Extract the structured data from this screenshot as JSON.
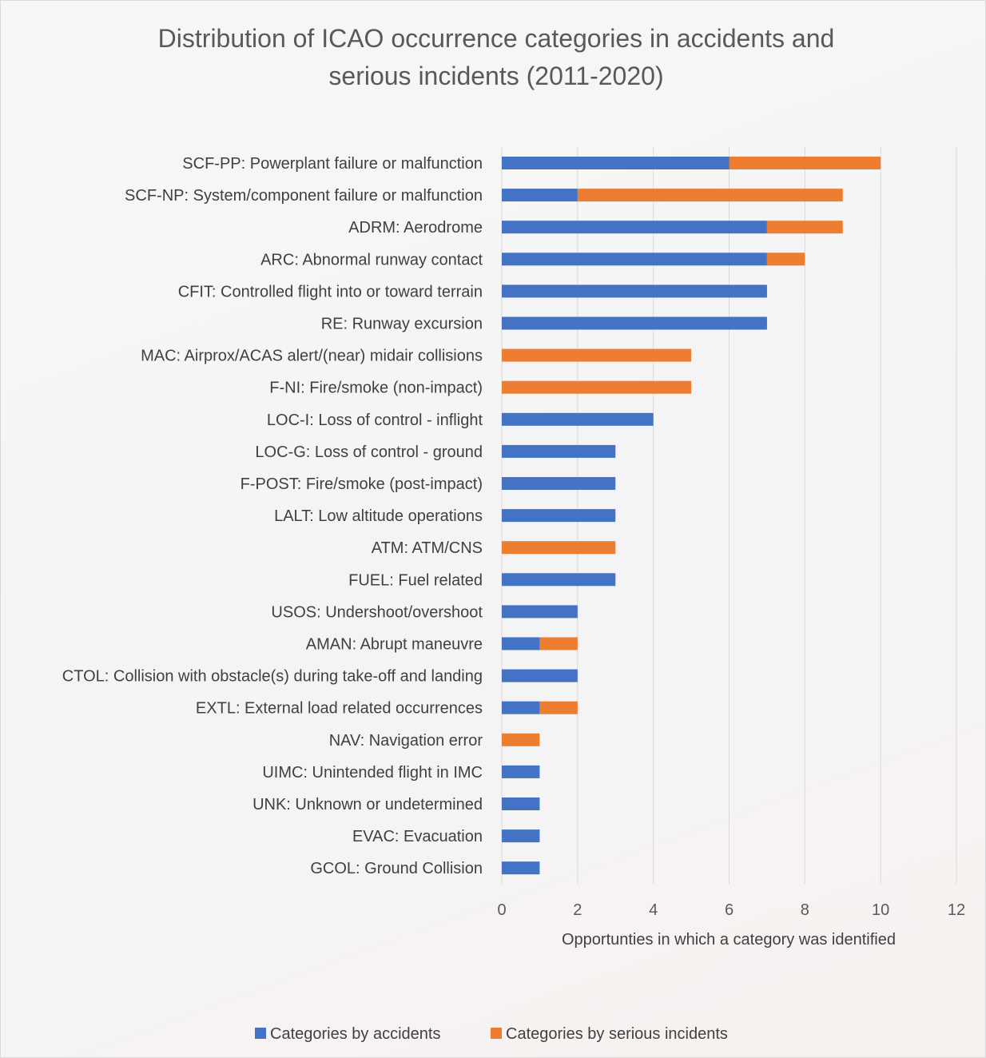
{
  "chart_data": {
    "type": "bar",
    "orientation": "horizontal",
    "stacked": true,
    "title": "Distribution of ICAO occurrence categories in accidents and serious incidents (2011-2020)",
    "title_lines": [
      "Distribution of ICAO occurrence categories in accidents and",
      "serious incidents (2011-2020)"
    ],
    "xlabel": "Opportunties in which a category was identified",
    "ylabel": "",
    "xlim": [
      0,
      12
    ],
    "x_ticks": [
      "0",
      "2",
      "4",
      "6",
      "8",
      "10",
      "12"
    ],
    "grid": "vertical",
    "legend_position": "bottom",
    "categories": [
      "SCF-PP: Powerplant failure or malfunction",
      "SCF-NP: System/component failure or malfunction",
      "ADRM: Aerodrome",
      "ARC: Abnormal runway contact",
      "CFIT: Controlled flight into or toward terrain",
      "RE: Runway excursion",
      "MAC: Airprox/ACAS alert/(near) midair collisions",
      "F-NI: Fire/smoke (non-impact)",
      "LOC-I: Loss of control - inflight",
      "LOC-G: Loss of control - ground",
      "F-POST: Fire/smoke (post-impact)",
      "LALT: Low altitude operations",
      "ATM: ATM/CNS",
      "FUEL: Fuel related",
      "USOS: Undershoot/overshoot",
      "AMAN: Abrupt maneuvre",
      "CTOL: Collision with obstacle(s) during take-off and landing",
      "EXTL: External load related occurrences",
      "NAV: Navigation error",
      "UIMC: Unintended flight in IMC",
      "UNK: Unknown or undetermined",
      "EVAC: Evacuation",
      "GCOL: Ground Collision"
    ],
    "series": [
      {
        "name": "Categories by accidents",
        "color": "#4472C4",
        "values": [
          6,
          2,
          7,
          7,
          7,
          7,
          0,
          0,
          4,
          3,
          3,
          3,
          0,
          3,
          2,
          1,
          2,
          1,
          0,
          1,
          1,
          1,
          1
        ]
      },
      {
        "name": "Categories by serious incidents",
        "color": "#ED7D31",
        "values": [
          4,
          7,
          2,
          1,
          0,
          0,
          5,
          5,
          0,
          0,
          0,
          0,
          3,
          0,
          0,
          1,
          0,
          1,
          1,
          0,
          0,
          0,
          0
        ]
      }
    ]
  }
}
